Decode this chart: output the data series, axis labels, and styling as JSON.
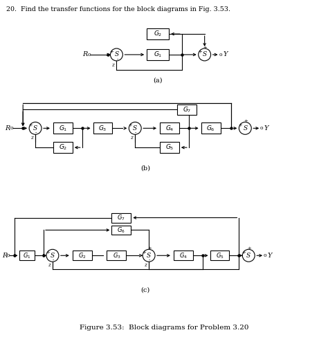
{
  "title_text": "20.  Find the transfer functions for the block diagrams in Fig. 3.53.",
  "caption": "Figure 3.53:  Block diagrams for Problem 3.20",
  "bg_color": "#ffffff",
  "label_a": "(a)",
  "label_b": "(b)",
  "label_c": "(c)"
}
